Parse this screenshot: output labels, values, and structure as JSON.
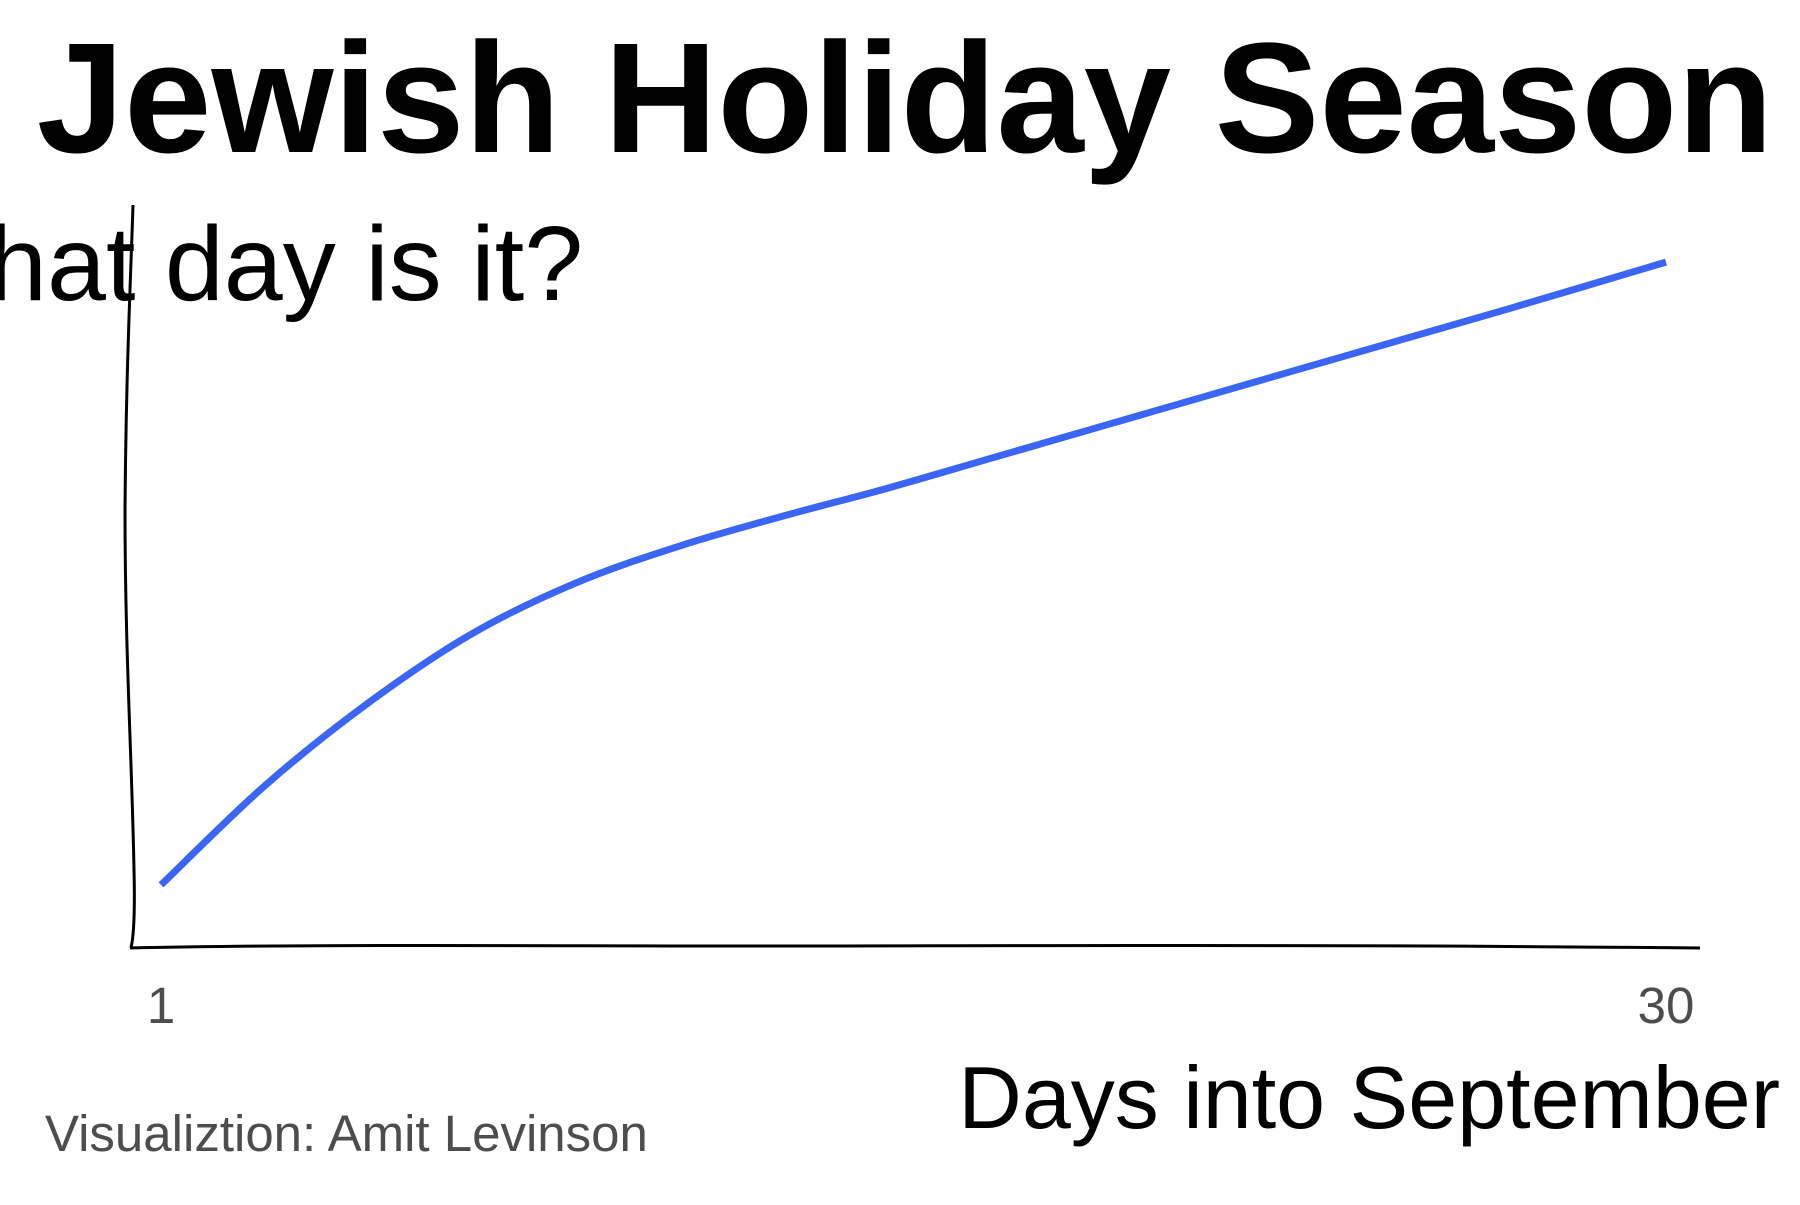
{
  "chart_data": {
    "type": "line",
    "title": "Jewish Holiday Season",
    "ylabel": "What day is it?",
    "xlabel": "Days into September",
    "caption": "Visualiztion: Amit Levinson",
    "x_ticks": [
      1,
      30
    ],
    "xlim": [
      1,
      30
    ],
    "ylim": [
      0,
      30
    ],
    "grid": false,
    "legend": "none",
    "series": [
      {
        "color": "#3B66F5",
        "x": [
          1,
          3,
          5,
          7,
          9,
          11,
          13,
          15,
          17,
          19,
          21,
          23,
          25,
          27,
          30
        ],
        "y": [
          1.0,
          5.3,
          8.9,
          11.9,
          14.1,
          15.7,
          17.0,
          18.2,
          19.5,
          20.8,
          22.1,
          23.4,
          24.7,
          26.0,
          28.0
        ]
      }
    ]
  }
}
